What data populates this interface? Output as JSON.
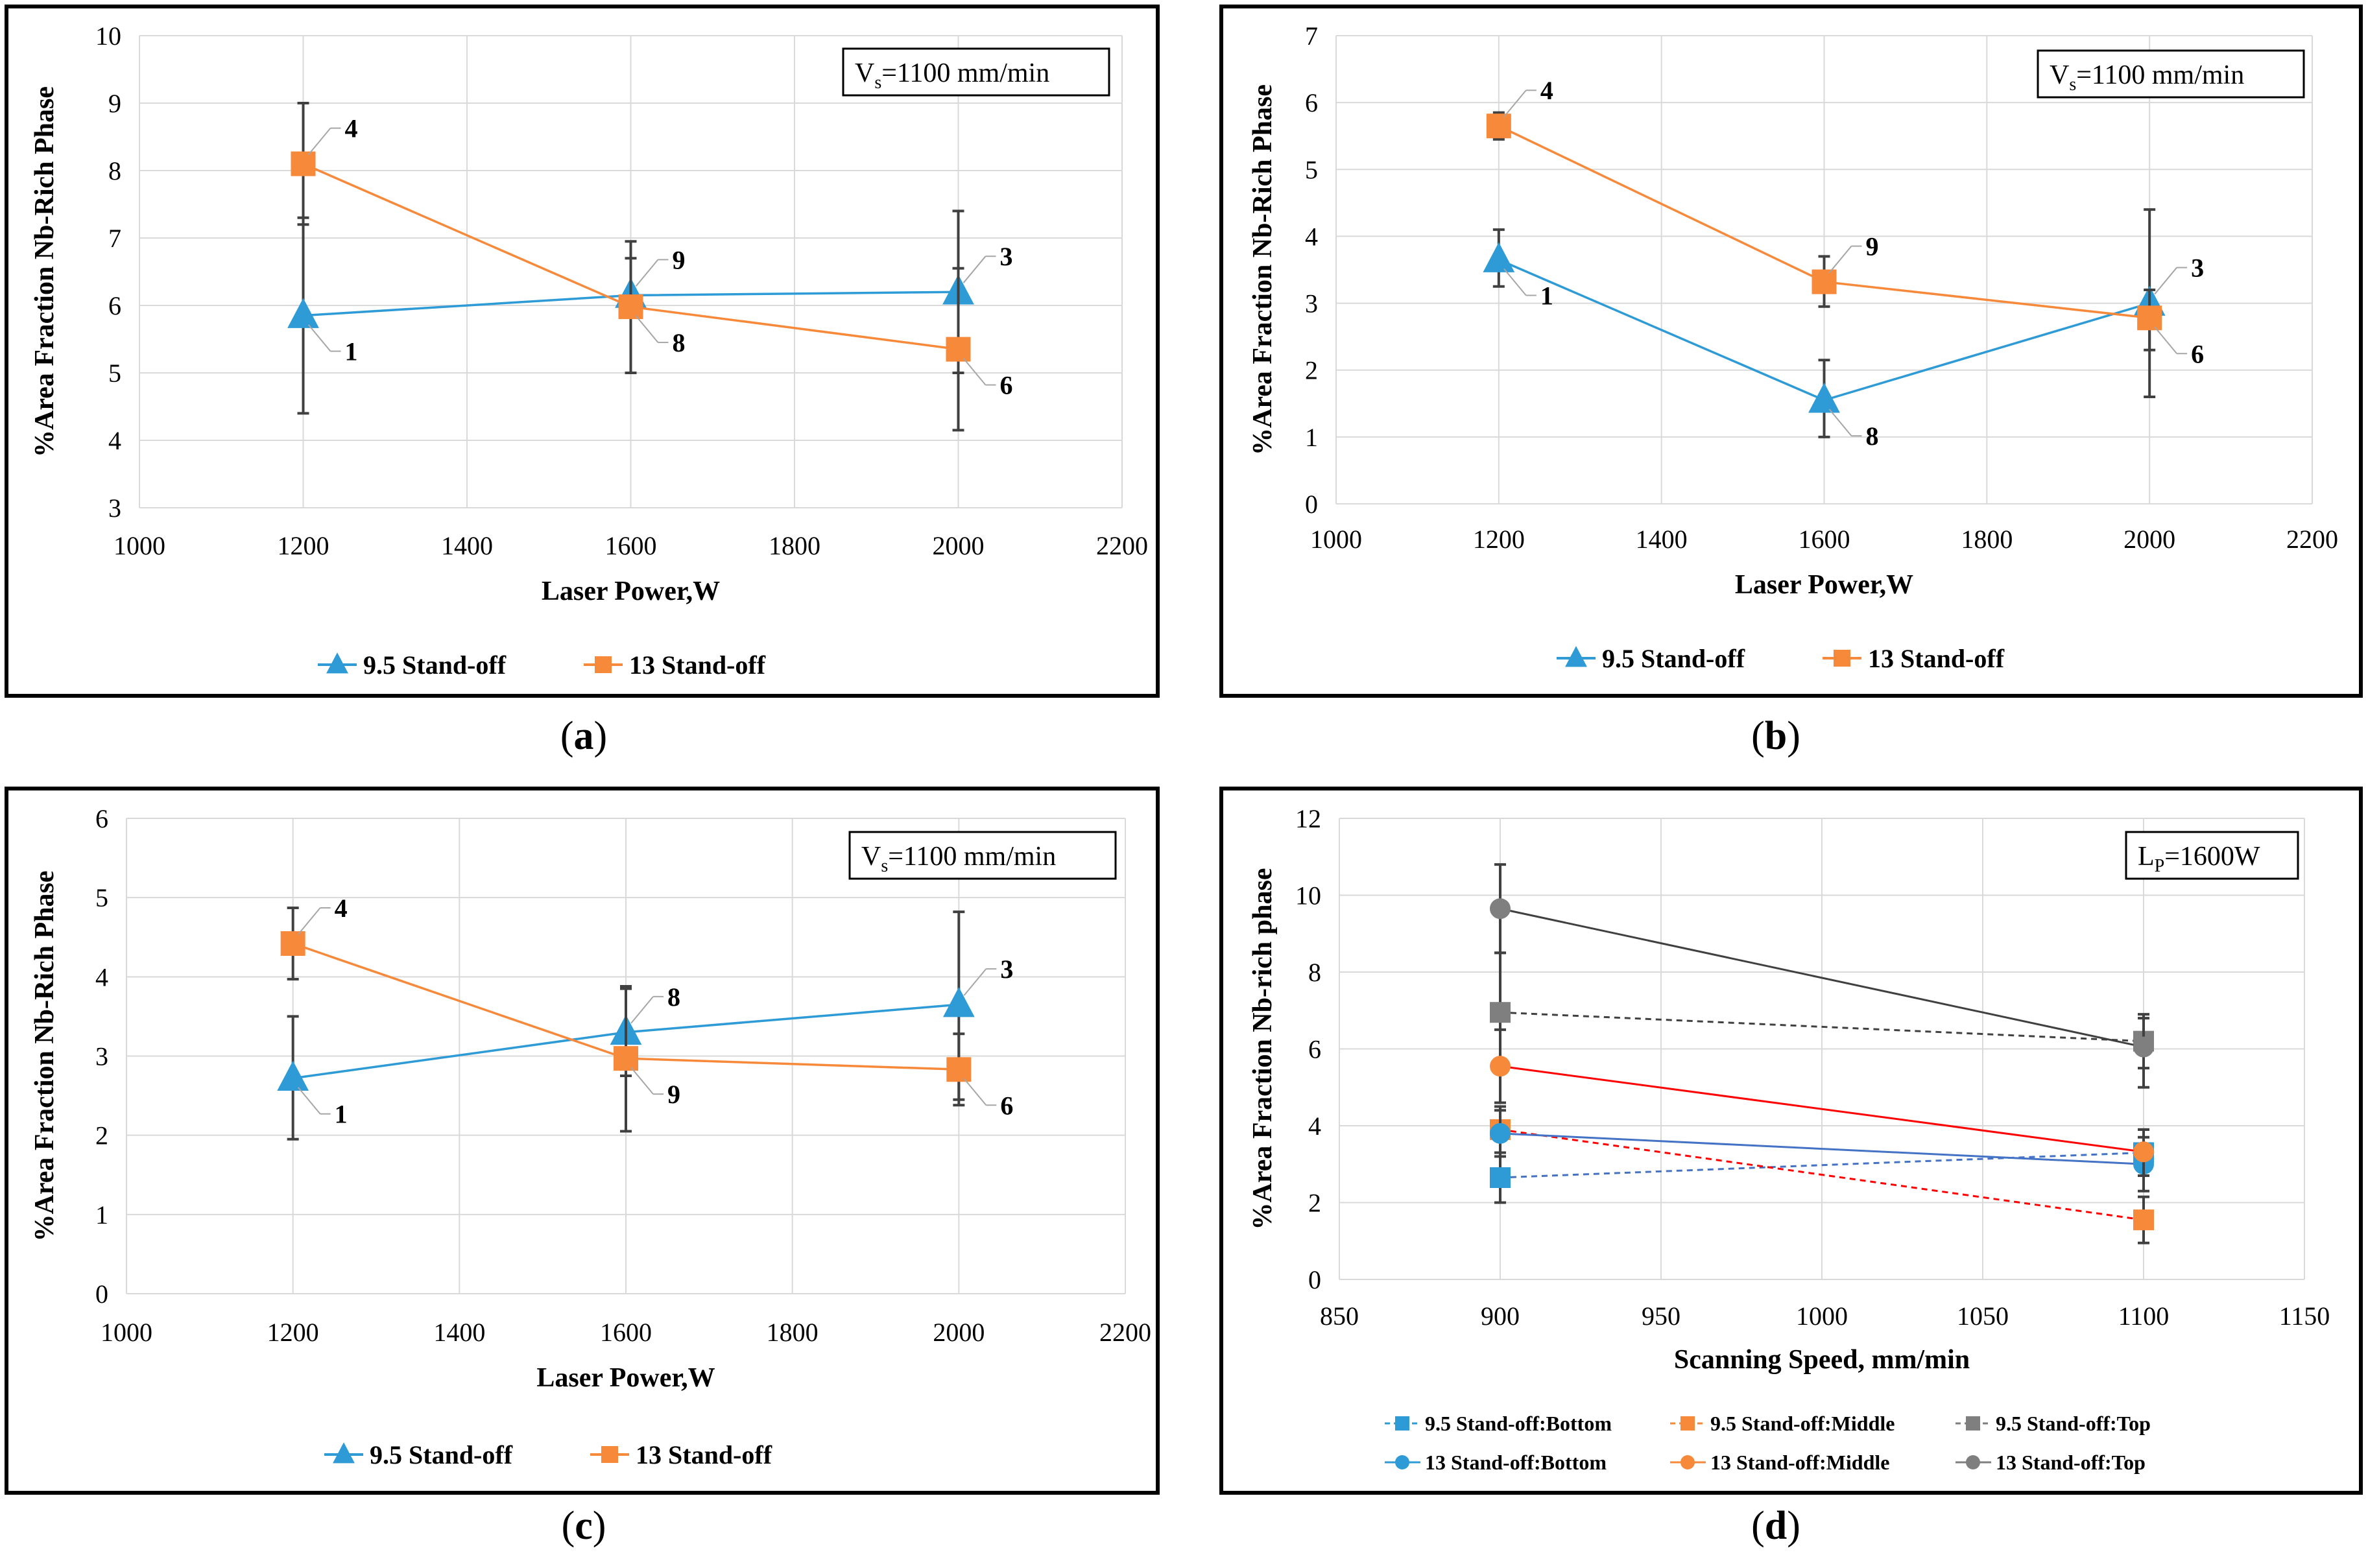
{
  "chart_data": [
    {
      "type": "line",
      "caption": "a",
      "title": "",
      "xlabel": "Laser Power,W",
      "ylabel": "%Area Fraction Nb-Rich Phase",
      "xlim": [
        1000,
        2200
      ],
      "ylim": [
        3,
        10
      ],
      "xticks": [
        1000,
        1200,
        1400,
        1600,
        1800,
        2000,
        2200
      ],
      "yticks": [
        3,
        4,
        5,
        6,
        7,
        8,
        9,
        10
      ],
      "grid": true,
      "annotation": {
        "main": "V",
        "sub": "s",
        "rest": "=1100 mm/min"
      },
      "legend_position": "bottom",
      "series": [
        {
          "name": "9.5 Stand-off",
          "color": "#2E9BD6",
          "marker": "triangle",
          "dash": "solid",
          "x": [
            1200,
            1600,
            2000
          ],
          "y": [
            5.85,
            6.15,
            6.2
          ],
          "yerr_low": [
            4.4,
            5.0,
            5.0
          ],
          "yerr_high": [
            7.3,
            6.7,
            7.4
          ],
          "labels": [
            "1",
            "9",
            "3"
          ]
        },
        {
          "name": "13 Stand-off",
          "color": "#F7893B",
          "marker": "square",
          "dash": "solid",
          "x": [
            1200,
            1600,
            2000
          ],
          "y": [
            8.1,
            5.98,
            5.35
          ],
          "yerr_low": [
            7.2,
            5.0,
            4.15
          ],
          "yerr_high": [
            9.0,
            6.95,
            6.55
          ],
          "labels": [
            "4",
            "8",
            "6"
          ]
        }
      ]
    },
    {
      "type": "line",
      "caption": "b",
      "title": "",
      "xlabel": "Laser Power,W",
      "ylabel": "%Area Fraction Nb-Rich Phase",
      "xlim": [
        1000,
        2200
      ],
      "ylim": [
        0,
        7
      ],
      "xticks": [
        1000,
        1200,
        1400,
        1600,
        1800,
        2000,
        2200
      ],
      "yticks": [
        0,
        1,
        2,
        3,
        4,
        5,
        6,
        7
      ],
      "grid": true,
      "annotation": {
        "main": "V",
        "sub": "s",
        "rest": "=1100 mm/min"
      },
      "legend_position": "bottom",
      "series": [
        {
          "name": "9.5 Stand-off",
          "color": "#2E9BD6",
          "marker": "triangle",
          "dash": "solid",
          "x": [
            1200,
            1600,
            2000
          ],
          "y": [
            3.65,
            1.55,
            3.0
          ],
          "yerr_low": [
            3.25,
            1.0,
            1.6
          ],
          "yerr_high": [
            4.1,
            2.15,
            4.4
          ],
          "labels": [
            "1",
            "8",
            "3"
          ]
        },
        {
          "name": "13 Stand-off",
          "color": "#F7893B",
          "marker": "square",
          "dash": "solid",
          "x": [
            1200,
            1600,
            2000
          ],
          "y": [
            5.65,
            3.32,
            2.78
          ],
          "yerr_low": [
            5.45,
            2.95,
            2.3
          ],
          "yerr_high": [
            5.85,
            3.7,
            3.2
          ],
          "labels": [
            "4",
            "9",
            "6"
          ]
        }
      ]
    },
    {
      "type": "line",
      "caption": "c",
      "title": "",
      "xlabel": "Laser Power,W",
      "ylabel": "%Area Fraction Nb-Rich Phase",
      "xlim": [
        1000,
        2200
      ],
      "ylim": [
        0,
        6
      ],
      "xticks": [
        1000,
        1200,
        1400,
        1600,
        1800,
        2000,
        2200
      ],
      "yticks": [
        0,
        1,
        2,
        3,
        4,
        5,
        6
      ],
      "grid": true,
      "annotation": {
        "main": "V",
        "sub": "s",
        "rest": "=1100 mm/min"
      },
      "legend_position": "bottom",
      "series": [
        {
          "name": "9.5 Stand-off",
          "color": "#2E9BD6",
          "marker": "triangle",
          "dash": "solid",
          "x": [
            1200,
            1600,
            2000
          ],
          "y": [
            2.72,
            3.3,
            3.65
          ],
          "yerr_low": [
            1.95,
            2.75,
            2.45
          ],
          "yerr_high": [
            3.5,
            3.85,
            4.82
          ],
          "labels": [
            "1",
            "8",
            "3"
          ]
        },
        {
          "name": "13 Stand-off",
          "color": "#F7893B",
          "marker": "square",
          "dash": "solid",
          "x": [
            1200,
            1600,
            2000
          ],
          "y": [
            4.42,
            2.97,
            2.83
          ],
          "yerr_low": [
            3.97,
            2.05,
            2.38
          ],
          "yerr_high": [
            4.87,
            3.88,
            3.28
          ],
          "labels": [
            "4",
            "9",
            "6"
          ]
        }
      ]
    },
    {
      "type": "line",
      "caption": "d",
      "title": "",
      "xlabel": "Scanning Speed, mm/min",
      "ylabel": "%Area Fraction Nb-rich phase",
      "xlim": [
        850,
        1150
      ],
      "ylim": [
        0,
        12
      ],
      "xticks": [
        850,
        900,
        950,
        1000,
        1050,
        1100,
        1150
      ],
      "yticks": [
        0,
        2,
        4,
        6,
        8,
        10,
        12
      ],
      "grid": true,
      "annotation": {
        "main": "L",
        "sub": "P",
        "rest": "=1600W"
      },
      "legend_position": "bottom",
      "series": [
        {
          "name": "9.5 Stand-off:Bottom",
          "color": "#2E9BD6",
          "marker": "square",
          "dash": "dashed",
          "x": [
            900,
            1100
          ],
          "y": [
            2.65,
            3.3
          ],
          "yerr_low": [
            2.0,
            2.7
          ],
          "yerr_high": [
            3.3,
            3.9
          ]
        },
        {
          "name": "9.5 Stand-off:Middle",
          "color": "#F7893B",
          "marker": "square",
          "dash": "dashed",
          "x": [
            900,
            1100
          ],
          "y": [
            3.9,
            1.55
          ],
          "yerr_low": [
            3.3,
            0.95
          ],
          "yerr_high": [
            4.5,
            2.15
          ]
        },
        {
          "name": "9.5 Stand-off:Top",
          "color": "#7F7F7F",
          "marker": "square",
          "dash": "dashed",
          "x": [
            900,
            1100
          ],
          "y": [
            6.95,
            6.2
          ],
          "yerr_low": [
            5.4,
            5.5
          ],
          "yerr_high": [
            8.5,
            6.9
          ]
        },
        {
          "name": "13 Stand-off:Bottom",
          "color": "#2E9BD6",
          "marker": "circle",
          "dash": "solid",
          "x": [
            900,
            1100
          ],
          "y": [
            3.8,
            3.0
          ],
          "yerr_low": [
            3.2,
            2.3
          ],
          "yerr_high": [
            4.4,
            3.7
          ]
        },
        {
          "name": "13 Stand-off:Middle",
          "color": "#F7893B",
          "marker": "circle",
          "dash": "solid",
          "x": [
            900,
            1100
          ],
          "y": [
            5.55,
            3.32
          ],
          "yerr_low": [
            4.6,
            2.7
          ],
          "yerr_high": [
            6.5,
            3.9
          ]
        },
        {
          "name": "13 Stand-off:Top",
          "color": "#7F7F7F",
          "marker": "circle",
          "dash": "solid",
          "x": [
            900,
            1100
          ],
          "y": [
            9.65,
            6.05
          ],
          "yerr_low": [
            8.5,
            5.0
          ],
          "yerr_high": [
            10.8,
            6.8
          ]
        }
      ]
    }
  ]
}
